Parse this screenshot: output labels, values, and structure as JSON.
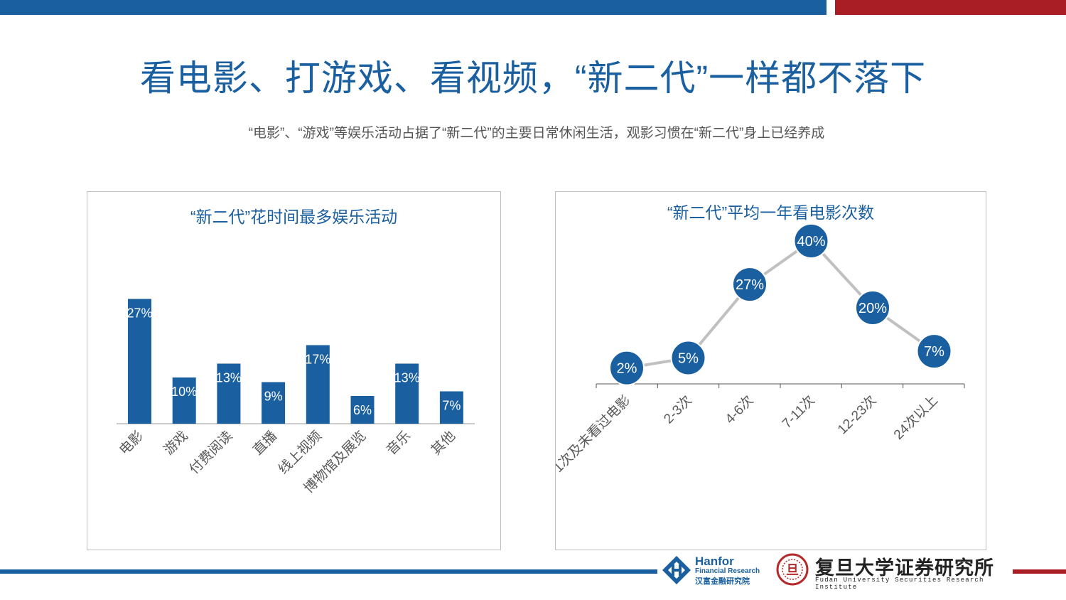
{
  "header": {
    "title": "看电影、打游戏、看视频，“新二代”一样都不落下",
    "subtitle": "“电影”、“游戏”等娱乐活动占据了“新二代”的主要日常休闲生活，观影习惯在“新二代”身上已经养成"
  },
  "colors": {
    "brand_blue": "#1a5fa0",
    "brand_red": "#a81e24",
    "line_gray": "#c0c0c0"
  },
  "chart_data": [
    {
      "type": "bar",
      "title": "“新二代”花时间最多娱乐活动",
      "categories": [
        "电影",
        "游戏",
        "付费阅读",
        "直播",
        "线上视频",
        "博物馆及展览",
        "音乐",
        "其他"
      ],
      "values": [
        27,
        10,
        13,
        9,
        17,
        6,
        13,
        7
      ],
      "labels": [
        "27%",
        "10%",
        "13%",
        "9%",
        "17%",
        "6%",
        "13%",
        "7%"
      ],
      "unit": "%",
      "grid": false,
      "legend": "none"
    },
    {
      "type": "line",
      "title": "“新二代”平均一年看电影次数",
      "categories": [
        "1次及未看过电影",
        "2-3次",
        "4-6次",
        "7-11次",
        "12-23次",
        "24次以上"
      ],
      "values": [
        2,
        5,
        27,
        40,
        20,
        7
      ],
      "labels": [
        "2%",
        "5%",
        "27%",
        "40%",
        "20%",
        "7%"
      ],
      "unit": "%",
      "grid": false,
      "legend": "none"
    }
  ],
  "logos": {
    "hanfor_name": "Hanfor",
    "hanfor_sub": "Financial Research",
    "hanfor_cn": "汉富金融研究院",
    "fudan_cn": "复旦大学证券研究所",
    "fudan_en": "Fudan University Securities Research Institute",
    "fudan_seal": "旦"
  }
}
